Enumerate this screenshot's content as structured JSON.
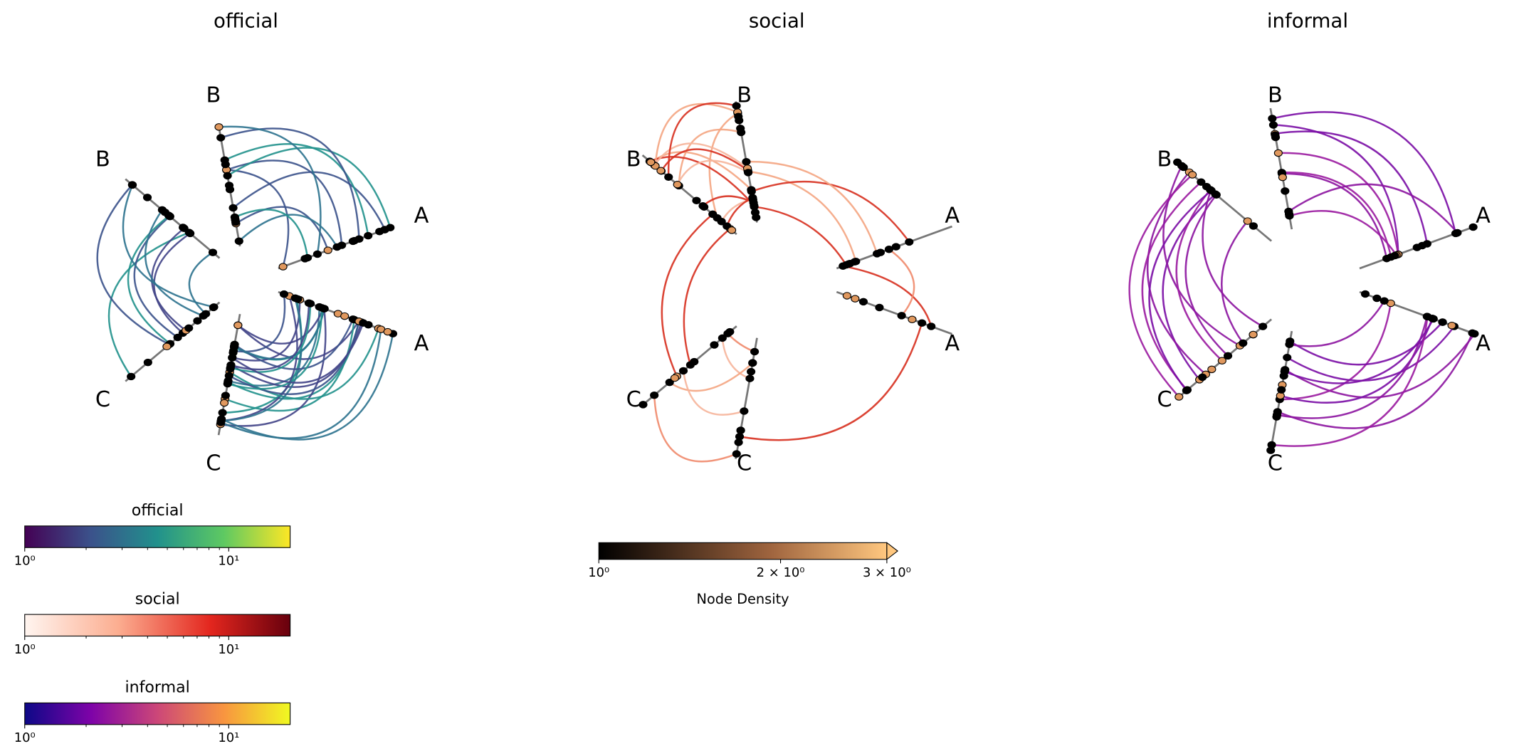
{
  "panels": [
    {
      "title": "official",
      "axes": [
        {
          "label": "A"
        },
        {
          "label": "A"
        },
        {
          "label": "B"
        },
        {
          "label": "B"
        },
        {
          "label": "C"
        },
        {
          "label": "C"
        }
      ]
    },
    {
      "title": "social",
      "axes": [
        {
          "label": "A"
        },
        {
          "label": "A"
        },
        {
          "label": "B"
        },
        {
          "label": "B"
        },
        {
          "label": "C"
        },
        {
          "label": "C"
        }
      ]
    },
    {
      "title": "informal",
      "axes": [
        {
          "label": "A"
        },
        {
          "label": "A"
        },
        {
          "label": "B"
        },
        {
          "label": "B"
        },
        {
          "label": "C"
        },
        {
          "label": "C"
        }
      ]
    }
  ],
  "colorbars": [
    {
      "label": "official",
      "scale": "log",
      "lim": [
        1,
        20
      ],
      "ticks": [
        {
          "value": 1,
          "label": "10⁰"
        },
        {
          "value": 10,
          "label": "10¹"
        }
      ]
    },
    {
      "label": "social",
      "scale": "log",
      "lim": [
        1,
        20
      ],
      "ticks": [
        {
          "value": 1,
          "label": "10⁰"
        },
        {
          "value": 10,
          "label": "10¹"
        }
      ]
    },
    {
      "label": "informal",
      "scale": "log",
      "lim": [
        1,
        20
      ],
      "ticks": [
        {
          "value": 1,
          "label": "10⁰"
        },
        {
          "value": 10,
          "label": "10¹"
        }
      ]
    }
  ],
  "node_colorbar": {
    "label": "Node Density",
    "scale": "log",
    "lim": [
      1,
      3
    ],
    "ticks": [
      {
        "value": 1,
        "label": "10⁰"
      },
      {
        "value": 2,
        "label": "2 × 10⁰"
      },
      {
        "value": 3,
        "label": "3 × 10⁰"
      }
    ]
  }
}
